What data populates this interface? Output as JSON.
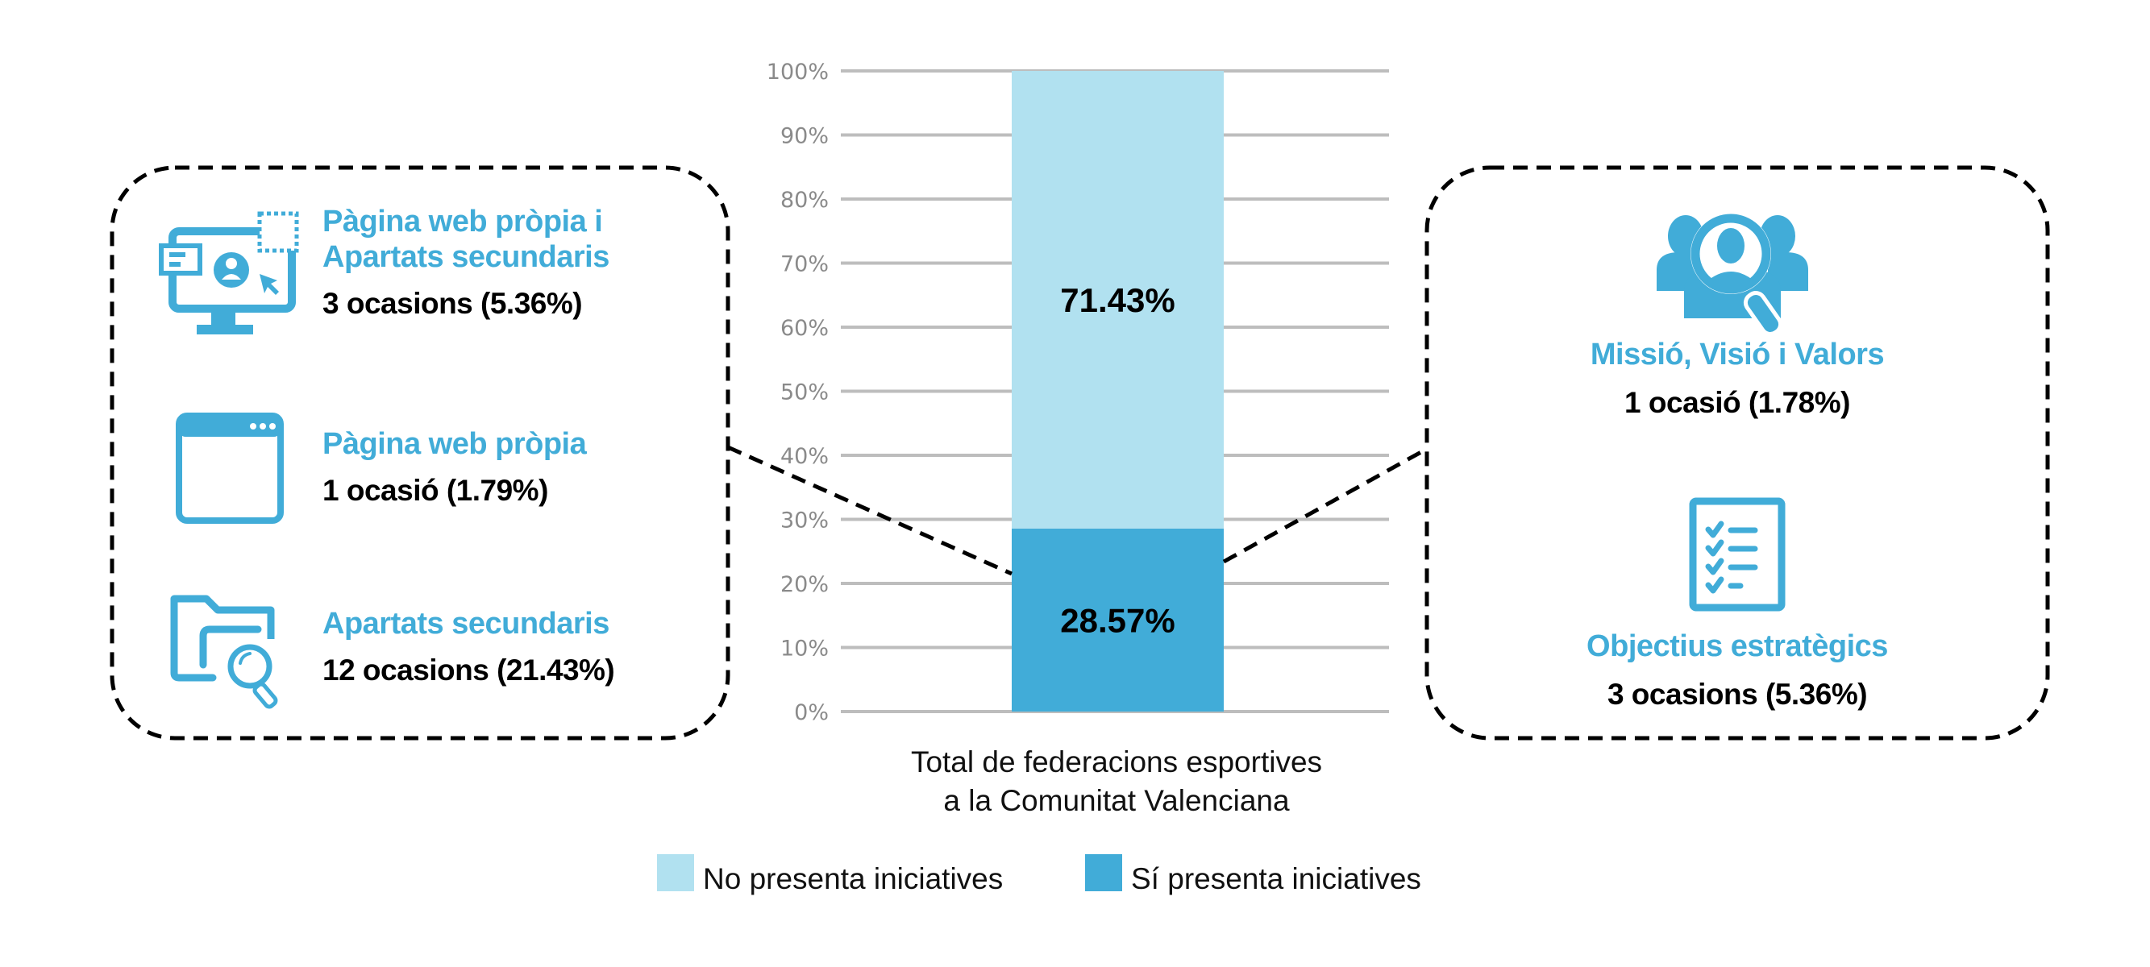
{
  "chart_data": {
    "type": "bar",
    "stacked": true,
    "categories": [
      "Total de federacions esportives a la Comunitat Valenciana"
    ],
    "category_label_lines": [
      "Total de federacions esportives",
      "a la Comunitat Valenciana"
    ],
    "series": [
      {
        "name": "Sí presenta iniciatives",
        "values": [
          28.57
        ],
        "label": "28.57%",
        "color": "#41acd8"
      },
      {
        "name": "No presenta iniciatives",
        "values": [
          71.43
        ],
        "label": "71.43%",
        "color": "#b1e1f0"
      }
    ],
    "ylim": [
      0,
      100
    ],
    "yticks": [
      0,
      10,
      20,
      30,
      40,
      50,
      60,
      70,
      80,
      90,
      100
    ],
    "ytick_labels": [
      "0%",
      "10%",
      "20%",
      "30%",
      "40%",
      "50%",
      "60%",
      "70%",
      "80%",
      "90%",
      "100%"
    ],
    "grid": true,
    "legend": [
      {
        "label": "No presenta iniciatives",
        "color": "#b1e1f0"
      },
      {
        "label": "Sí presenta iniciatives",
        "color": "#41acd8"
      }
    ],
    "legend_position": "bottom",
    "title": "",
    "xlabel": "",
    "ylabel": ""
  },
  "left_panel": {
    "items": [
      {
        "title_lines": [
          "Pàgina web pròpia i",
          "Apartats secundaris"
        ],
        "count": "3 ocasions (5.36%)",
        "icon": "monitor-user-icon"
      },
      {
        "title_lines": [
          "Pàgina web pròpia"
        ],
        "count": "1 ocasió (1.79%)",
        "icon": "browser-window-icon"
      },
      {
        "title_lines": [
          "Apartats secundaris"
        ],
        "count": "12 ocasions (21.43%)",
        "icon": "folder-search-icon"
      }
    ]
  },
  "right_panel": {
    "items": [
      {
        "title_lines": [
          "Missió, Visió i Valors"
        ],
        "count": "1 ocasió (1.78%)",
        "icon": "people-search-icon"
      },
      {
        "title_lines": [
          "Objectius estratègics"
        ],
        "count": "3 ocasions (5.36%)",
        "icon": "checklist-icon"
      }
    ]
  },
  "colors": {
    "accent": "#41acd8",
    "light": "#b1e1f0",
    "grid": "#bdbdbd",
    "tick_text": "#8a8a8a",
    "dashed": "#000000"
  }
}
